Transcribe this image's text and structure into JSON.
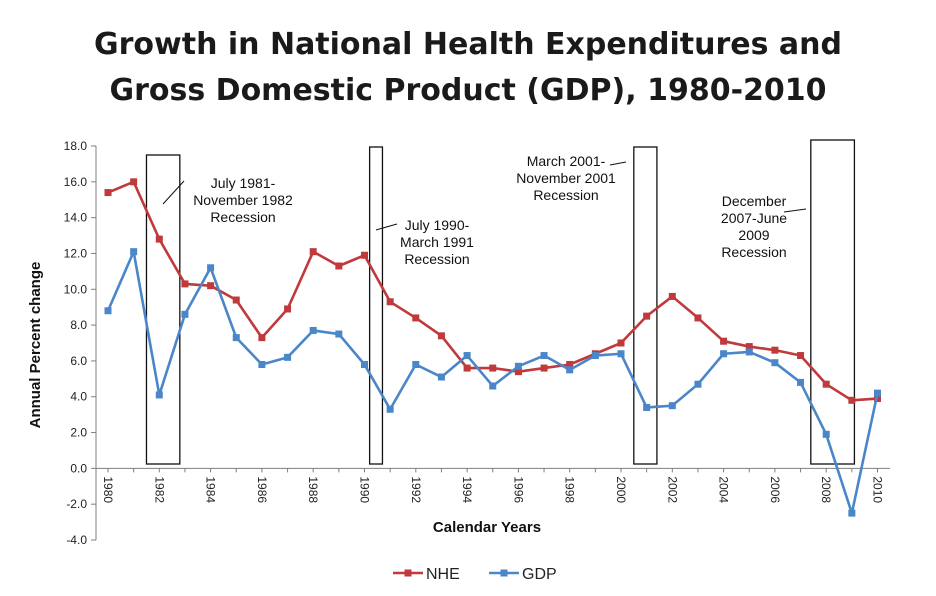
{
  "chart_data": {
    "type": "line",
    "title_lines": [
      "Growth in National Health Expenditures and",
      "Gross Domestic Product (GDP), 1980-2010"
    ],
    "xlabel": "Calendar Years",
    "ylabel": "Annual  Percent change",
    "ylim": [
      -4.0,
      18.0
    ],
    "yticks": [
      "-4.0",
      "-2.0",
      "0.0",
      "2.0",
      "4.0",
      "6.0",
      "8.0",
      "10.0",
      "12.0",
      "14.0",
      "16.0",
      "18.0"
    ],
    "xticks": [
      "1980",
      "1982",
      "1984",
      "1986",
      "1988",
      "1990",
      "1992",
      "1994",
      "1996",
      "1998",
      "2000",
      "2002",
      "2004",
      "2006",
      "2008",
      "2010"
    ],
    "x": [
      1980,
      1981,
      1982,
      1983,
      1984,
      1985,
      1986,
      1987,
      1988,
      1989,
      1990,
      1991,
      1992,
      1993,
      1994,
      1995,
      1996,
      1997,
      1998,
      1999,
      2000,
      2001,
      2002,
      2003,
      2004,
      2005,
      2006,
      2007,
      2008,
      2009,
      2010
    ],
    "series": [
      {
        "name": "NHE",
        "color": "#c0393b",
        "values": [
          15.4,
          16.0,
          12.8,
          10.3,
          10.2,
          9.4,
          7.3,
          8.9,
          12.1,
          11.3,
          11.9,
          9.3,
          8.4,
          7.4,
          5.6,
          5.6,
          5.4,
          5.6,
          5.8,
          6.4,
          7.0,
          8.5,
          9.6,
          8.4,
          7.1,
          6.8,
          6.6,
          6.3,
          4.7,
          3.8,
          3.9
        ]
      },
      {
        "name": "GDP",
        "color": "#4a86c8",
        "values": [
          8.8,
          12.1,
          4.1,
          8.6,
          11.2,
          7.3,
          5.8,
          6.2,
          7.7,
          7.5,
          5.8,
          3.3,
          5.8,
          5.1,
          6.3,
          4.6,
          5.7,
          6.3,
          5.5,
          6.3,
          6.4,
          3.4,
          3.5,
          4.7,
          6.4,
          6.5,
          5.9,
          4.8,
          1.9,
          -2.5,
          4.2
        ]
      }
    ],
    "recessions": [
      {
        "label_lines": [
          "July 1981-",
          "November 1982",
          "Recession"
        ],
        "start": 1981.5,
        "end": 1982.8
      },
      {
        "label_lines": [
          "July 1990-",
          "March 1991",
          "Recession"
        ],
        "start": 1990.2,
        "end": 1990.7
      },
      {
        "label_lines": [
          "March 2001-",
          "November 2001",
          "Recession"
        ],
        "start": 2000.5,
        "end": 2001.4
      },
      {
        "label_lines": [
          "December",
          "2007-June",
          "2009",
          "Recession"
        ],
        "start": 2007.4,
        "end": 2009.1
      }
    ],
    "legend_position": "bottom-center",
    "grid": false
  }
}
